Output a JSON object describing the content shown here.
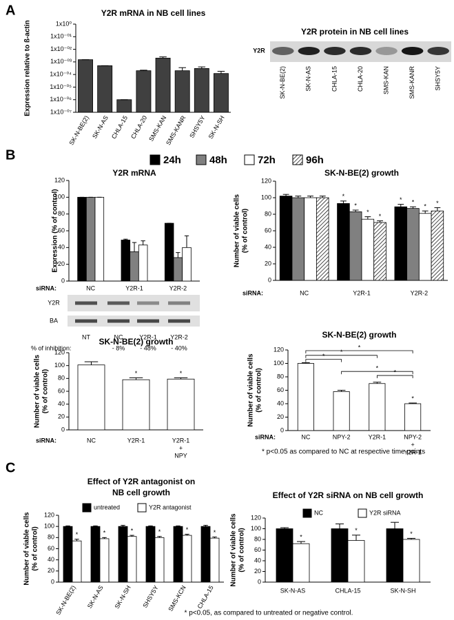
{
  "panel_labels": [
    "A",
    "B",
    "C"
  ],
  "footnotes": [
    "* p<0.05 as compared to NC at respective time points",
    "* p<0.05, as compared to untreated or negative control."
  ],
  "blots": [
    {
      "title": "Y2R protein in NB cell lines",
      "row_labels": [
        "Y2R"
      ],
      "lane_labels": [
        "SK-N-BE(2)",
        "SK-N-AS",
        "CHLA-15",
        "CHLA-20",
        "SMS-KAN",
        "SMS-KANR",
        "SHSY5Y"
      ]
    },
    {
      "row_labels": [
        "Y2R",
        "BA"
      ],
      "lane_labels": [
        "NT",
        "NC",
        "Y2R-1",
        "Y2R-2"
      ],
      "inhibition_label": "% of inhibition:",
      "inhibition": [
        null,
        "- 8%",
        "- 48%",
        "- 40%"
      ]
    }
  ],
  "chart_data": [
    {
      "type": "bar",
      "title": "Y2R mRNA in NB cell lines",
      "ylabel": "Expression relative to ß-actin",
      "log_scale": true,
      "categories": [
        "SK-N-BE(2)",
        "SK-N-AS",
        "CHLA-15",
        "CHLA-20",
        "SMS-KAN",
        "SMS-KANR",
        "SHSY5Y",
        "SK-N-SH"
      ],
      "values": [
        0.0015,
        0.0005,
        1e-06,
        0.0002,
        0.002,
        0.0002,
        0.0003,
        0.00012
      ],
      "errors": [
        0,
        0,
        0,
        2e-05,
        0.0005,
        0.00015,
        0.0001,
        6e-05
      ],
      "color": "#404040",
      "ylim": [
        1e-07,
        1
      ],
      "yticks": [
        {
          "value": 1,
          "label": "1x10⁰"
        },
        {
          "value": 0.1,
          "label": "1x10⁻⁰¹"
        },
        {
          "value": 0.01,
          "label": "1x10⁻⁰²"
        },
        {
          "value": 0.001,
          "label": "1x10⁻⁰³"
        },
        {
          "value": 0.0001,
          "label": "1x10⁻⁰⁴"
        },
        {
          "value": 1e-05,
          "label": "1x10⁻⁰⁵"
        },
        {
          "value": 1e-06,
          "label": "1x10⁻⁰⁶"
        },
        {
          "value": 1e-07,
          "label": "1x10⁻⁰⁷"
        }
      ]
    },
    {
      "type": "bar",
      "title": "Y2R mRNA",
      "ylabel": "Expression (% of control)",
      "xlabel": "siRNA:",
      "categories": [
        "NC",
        "Y2R-1",
        "Y2R-2"
      ],
      "series": [
        {
          "color": "#000000",
          "values": [
            100,
            49,
            69
          ],
          "errors": [
            0,
            1,
            0
          ]
        },
        {
          "color": "#808080",
          "values": [
            100,
            35,
            28
          ],
          "errors": [
            0,
            11,
            6
          ]
        },
        {
          "color": "#ffffff",
          "values": [
            100,
            43,
            40
          ],
          "errors": [
            0,
            5,
            14
          ]
        }
      ],
      "ylim": [
        0,
        120
      ],
      "yticks": [
        0,
        20,
        40,
        60,
        80,
        100,
        120
      ]
    },
    {
      "type": "bar",
      "title": "SK-N-BE(2) growth",
      "ylabel": [
        "Number of viable cells",
        "(% of control)"
      ],
      "xlabel": "siRNA:",
      "categories": [
        "NC",
        "Y2R-1",
        "Y2R-2"
      ],
      "series": [
        {
          "name": "24h",
          "color": "#000000",
          "values": [
            102,
            93,
            89
          ],
          "errors": [
            2,
            3,
            3
          ],
          "asterisks": [
            null,
            "*",
            "*"
          ]
        },
        {
          "name": "48h",
          "color": "#808080",
          "values": [
            100,
            83,
            87
          ],
          "errors": [
            2,
            2,
            2
          ],
          "asterisks": [
            null,
            "*",
            "*"
          ]
        },
        {
          "name": "72h",
          "color": "#ffffff",
          "values": [
            100,
            74,
            81
          ],
          "errors": [
            2,
            3,
            3
          ],
          "asterisks": [
            null,
            "*",
            "*"
          ]
        },
        {
          "name": "96h",
          "color": "#ffffff",
          "hatch": true,
          "values": [
            100,
            70,
            84
          ],
          "errors": [
            2,
            2,
            4
          ],
          "asterisks": [
            null,
            "*",
            "*"
          ]
        }
      ],
      "ylim": [
        0,
        120
      ],
      "yticks": [
        0,
        20,
        40,
        60,
        80,
        100,
        120
      ]
    },
    {
      "type": "bar",
      "title": "SK-N-BE(2) growth",
      "ylabel": [
        "Number of viable cells",
        "(% of control)"
      ],
      "xlabel": "siRNA:",
      "categories": [
        "NC",
        "Y2R-1",
        [
          "Y2R-1",
          "+",
          "NPY"
        ]
      ],
      "values": [
        101,
        78,
        79
      ],
      "errors": [
        5,
        3,
        2
      ],
      "asterisks": [
        null,
        "*",
        "*"
      ],
      "color": "#ffffff",
      "ylim": [
        0,
        120
      ],
      "yticks": [
        0,
        20,
        40,
        60,
        80,
        100,
        120
      ]
    },
    {
      "type": "bar",
      "title": "SK-N-BE(2) growth",
      "ylabel": [
        "Number of viable cells",
        "(% of control)"
      ],
      "xlabel": "siRNA:",
      "categories": [
        "NC",
        "NPY-2",
        "Y2R-1",
        [
          "NPY-2",
          "+",
          "Y2R-1"
        ]
      ],
      "values": [
        100,
        58,
        70,
        40
      ],
      "errors": [
        1,
        2,
        2,
        1
      ],
      "asterisks": [
        null,
        null,
        null,
        "*"
      ],
      "color": "#ffffff",
      "comparison_labels": [
        "*",
        "*",
        "*",
        "*",
        "*"
      ],
      "ylim": [
        0,
        120
      ],
      "yticks": [
        0,
        20,
        40,
        60,
        80,
        100,
        120
      ]
    },
    {
      "type": "bar",
      "title": [
        "Effect of Y2R antagonist on",
        "NB cell growth"
      ],
      "ylabel": [
        "Number of viable cells",
        "(% of control)"
      ],
      "categories": [
        "SK-N-BE(2)",
        "SK-N-AS",
        "SK-N-SH",
        "SHSY5Y",
        "SMS-KCN",
        "CHLA-15"
      ],
      "series": [
        {
          "name": "untreated",
          "color": "#000000",
          "values": [
            100,
            100,
            100,
            100,
            100,
            100
          ],
          "errors": [
            1,
            1,
            2,
            1,
            1,
            2
          ]
        },
        {
          "name": "Y2R antagonist",
          "color": "#ffffff",
          "values": [
            74,
            78,
            82,
            80,
            84,
            79
          ],
          "errors": [
            3,
            2,
            2,
            2,
            2,
            2
          ],
          "asterisks": [
            "*",
            "*",
            "*",
            "*",
            "*",
            "*"
          ]
        }
      ],
      "ylim": [
        0,
        120
      ],
      "yticks": [
        0,
        20,
        40,
        60,
        80,
        100,
        120
      ]
    },
    {
      "type": "bar",
      "title": "Effect of Y2R siRNA on NB cell growth",
      "ylabel": [
        "Number of viable cells",
        "(% of control)"
      ],
      "categories": [
        "SK-N-AS",
        "CHLA-15",
        "SK-N-SH"
      ],
      "series": [
        {
          "name": "NC",
          "color": "#000000",
          "values": [
            100,
            100,
            100
          ],
          "errors": [
            2,
            9,
            12
          ]
        },
        {
          "name": "Y2R siRNA",
          "color": "#ffffff",
          "values": [
            72,
            78,
            80
          ],
          "errors": [
            4,
            10,
            2
          ],
          "asterisks": [
            "*",
            "*",
            "*"
          ]
        }
      ],
      "ylim": [
        0,
        120
      ],
      "yticks": [
        0,
        20,
        40,
        60,
        80,
        100,
        120
      ]
    }
  ]
}
